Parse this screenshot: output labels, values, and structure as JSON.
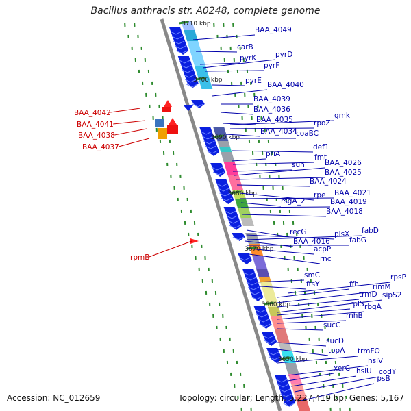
{
  "title": "Bacillus anthracis str. A0248, complete genome",
  "footer": {
    "accession": "Accession: NC_012659",
    "summary": "Topology: circular; Length: 5,227,419 bp; Genes: 5,167"
  },
  "ticks": [
    "3710 kbp",
    "3700 kbp",
    "3690 kbp",
    "3680 kbp",
    "3670 kbp",
    "3660 kbp",
    "3650 kbp"
  ],
  "left_labels": [
    "BAA_4042",
    "BAA_4041",
    "BAA_4038",
    "BAA_4037",
    "rpmB"
  ],
  "right_labels": [
    "BAA_4049",
    "carB",
    "pyrK",
    "pyrD",
    "pyrF",
    "pyrE",
    "BAA_4040",
    "BAA_4039",
    "BAA_4036",
    "BAA_4035",
    "BAA_4034",
    "gmk",
    "rpoZ",
    "coaBC",
    "def1",
    "priA",
    "fmt",
    "sun",
    "BAA_4026",
    "BAA_4025",
    "BAA_4024",
    "rpe",
    "BAA_4021",
    "rsgA_2",
    "BAA_4019",
    "BAA_4018",
    "recG",
    "plsX",
    "fabD",
    "BAA_4016",
    "fabG",
    "acpP",
    "rnc",
    "smC",
    "rpsP",
    "ftsY",
    "ffh",
    "rimM",
    "trmD",
    "sipS2",
    "rplS",
    "rbgA",
    "rnhB",
    "sucC",
    "sucD",
    "topA",
    "trmFO",
    "hslV",
    "xerC",
    "hslU",
    "codY",
    "rpsB"
  ],
  "colors": {
    "gene_blue": "#0a1fe0",
    "label_blue": "#0000aa",
    "label_red": "#cc0000",
    "tick_green": "#2e8b2e",
    "backbone": "#888888"
  }
}
